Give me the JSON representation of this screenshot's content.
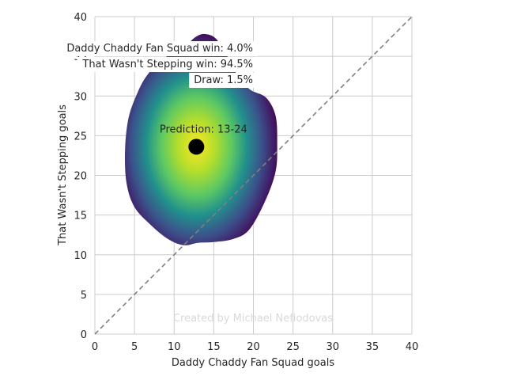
{
  "chart_data": {
    "type": "scatter",
    "title": "",
    "xlabel": "Daddy Chaddy Fan Squad goals",
    "ylabel": "That Wasn't Stepping goals",
    "xlim": [
      0,
      40
    ],
    "ylim": [
      0,
      40
    ],
    "x_ticks": [
      "0",
      "5",
      "10",
      "15",
      "20",
      "25",
      "30",
      "35",
      "40"
    ],
    "y_ticks": [
      "0",
      "5",
      "10",
      "15",
      "20",
      "25",
      "30",
      "35",
      "40"
    ],
    "grid": true,
    "diagonal_reference": {
      "from": [
        0,
        0
      ],
      "to": [
        40,
        40
      ],
      "style": "dashed",
      "color": "#808080"
    },
    "density": {
      "colormap": "viridis",
      "center": [
        12.5,
        23.5
      ],
      "extent_x": [
        3.8,
        23.0
      ],
      "extent_y": [
        11.0,
        37.8
      ]
    },
    "prediction_point": {
      "x": 12.8,
      "y": 23.6
    },
    "prediction_label": "Prediction: 13-24",
    "annotations": [
      "Daddy Chaddy Fan Squad win: 4.0%",
      "That Wasn't Stepping win: 94.5%",
      "Draw: 1.5%"
    ],
    "watermark": "Created by Michael Nefiodovas",
    "colors": {
      "grid": "#cccccc",
      "text": "#262626",
      "point": "#000000",
      "watermark": "#d9d9d9",
      "viridis": [
        "#440154",
        "#3b528b",
        "#21918c",
        "#5ec962",
        "#fde725"
      ]
    }
  }
}
